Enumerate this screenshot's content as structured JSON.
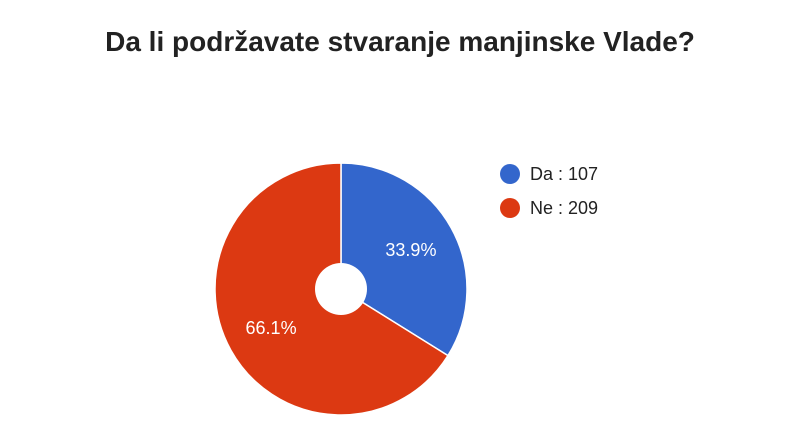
{
  "chart_data": {
    "type": "pie",
    "title": "Da li podržavate stvaranje manjinske Vlade?",
    "slices": [
      {
        "label": "Da",
        "value": 107,
        "percent_label": "33.9%",
        "legend_text": "Da : 107",
        "color": "#3366cc"
      },
      {
        "label": "Ne",
        "value": 209,
        "percent_label": "66.1%",
        "legend_text": "Ne : 209",
        "color": "#dc3912"
      }
    ],
    "donut_hole": true,
    "legend_position": "right"
  }
}
